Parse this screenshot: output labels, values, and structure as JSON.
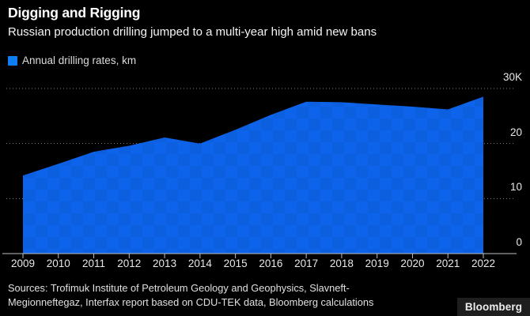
{
  "header": {
    "title": "Digging and Rigging",
    "subtitle": "Russian production drilling jumped to a multi-year high amid new bans"
  },
  "legend": {
    "label": "Annual drilling rates, km",
    "swatch_color": "#0E7DF2"
  },
  "chart_data": {
    "type": "area",
    "title": "Digging and Rigging",
    "subtitle": "Russian production drilling jumped to a multi-year high amid new bans",
    "categories": [
      "2009",
      "2010",
      "2011",
      "2012",
      "2013",
      "2014",
      "2015",
      "2016",
      "2017",
      "2018",
      "2019",
      "2020",
      "2021",
      "2022"
    ],
    "series": [
      {
        "name": "Annual drilling rates, km",
        "values": [
          14200,
          16300,
          18500,
          19600,
          21100,
          20000,
          22500,
          25200,
          27600,
          27500,
          27100,
          26700,
          26200,
          28500
        ]
      }
    ],
    "xlabel": "",
    "ylabel": "",
    "ylim": [
      0,
      30000
    ],
    "yticks": [
      {
        "value": 0,
        "label": "0"
      },
      {
        "value": 10000,
        "label": "10"
      },
      {
        "value": 20000,
        "label": "20"
      },
      {
        "value": 30000,
        "label": "30K"
      }
    ],
    "grid": "horizontal-dotted",
    "legend_position": "top-left"
  },
  "colors": {
    "background": "#000000",
    "area_fill": "#0D64EB",
    "watermark": "#000000",
    "gridline": "#7a7a7a",
    "axis": "#bfbfbf",
    "tick_label": "#e8e8e8",
    "title": "#ffffff",
    "legend_swatch": "#0E7DF2"
  },
  "footer": {
    "sources_line1": "Sources: Trofimuk Institute of Petroleum Geology and Geophysics, Slavneft-",
    "sources_line2": "Megionneftegaz, Interfax report based on CDU-TEK data, Bloomberg calculations",
    "brand": "Bloomberg"
  }
}
